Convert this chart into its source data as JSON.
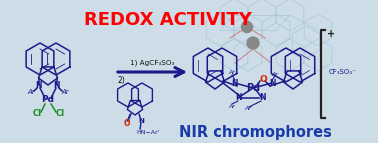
{
  "title": "REDOX ACTIVITY",
  "title_color": "#FF0000",
  "title_fontsize": 13,
  "bg_color": "#ccdde8",
  "step1_label": "1) AgCF₃SO₃",
  "step2_label": "2)",
  "label_color": "#111111",
  "nir_label": "NIR chromophores",
  "nir_color": "#1a3aaa",
  "nir_fontsize": 10.5,
  "arrow_color": "#1a1a8a",
  "sc": "#1a1a8a",
  "cl_color": "#228B22",
  "o_color": "#DD2200",
  "pd_color": "#606060",
  "cf3so3_label": "CF₃SO₃⁻",
  "plus_label": "+",
  "faint_color": "#adc5d8",
  "gray_sphere": "#888888"
}
